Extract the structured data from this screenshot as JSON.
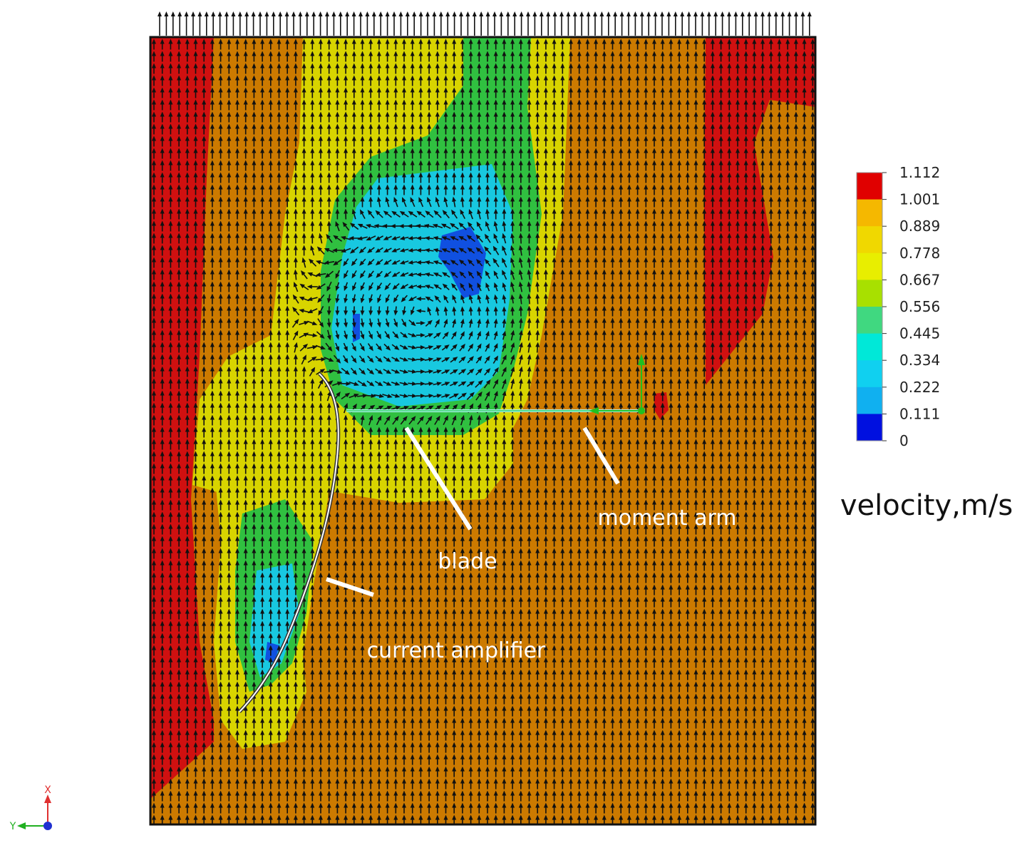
{
  "annotations": {
    "blade": "blade",
    "moment_arm": "moment arm",
    "current_amplifier": "current amplifier"
  },
  "legend": {
    "title": "velocity,m/s",
    "ticks": [
      "1.112",
      "1.001",
      "0.889",
      "0.778",
      "0.667",
      "0.556",
      "0.445",
      "0.334",
      "0.222",
      "0.111",
      "0"
    ],
    "colors": [
      "#e00000",
      "#f5b800",
      "#f0d800",
      "#e8ee00",
      "#a8e000",
      "#40d880",
      "#00e8d8",
      "#10d0f0",
      "#10b0f0",
      "#0010e0"
    ]
  },
  "axes_triad": {
    "x": "X",
    "y": "Y"
  },
  "colors": {
    "background_field": "#cc7a00",
    "red": "#d01010",
    "yellow": "#d8d400",
    "green": "#30c040",
    "cyan": "#18c8e0",
    "blue": "#1050e0",
    "arrow": "#111111"
  }
}
